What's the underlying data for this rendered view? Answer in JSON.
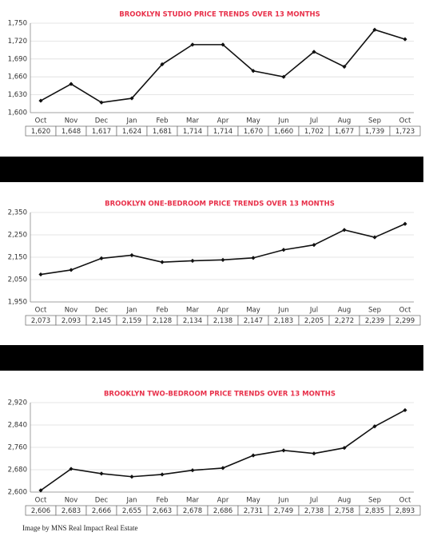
{
  "chart_data": [
    {
      "type": "line",
      "title": "BROOKLYN STUDIO PRICE TRENDS OVER 13 MONTHS",
      "categories": [
        "Oct",
        "Nov",
        "Dec",
        "Jan",
        "Feb",
        "Mar",
        "Apr",
        "May",
        "Jun",
        "Jul",
        "Aug",
        "Sep",
        "Oct"
      ],
      "values": [
        1620,
        1648,
        1617,
        1624,
        1681,
        1714,
        1714,
        1670,
        1660,
        1702,
        1677,
        1739,
        1723
      ],
      "value_labels": [
        "1,620",
        "1,648",
        "1,617",
        "1,624",
        "1,681",
        "1,714",
        "1,714",
        "1,670",
        "1,660",
        "1,702",
        "1,677",
        "1,739",
        "1,723"
      ],
      "color": "#111111",
      "ylim": [
        1600,
        1750
      ],
      "yticks": [
        {
          "value": 1600,
          "label": "1,600"
        },
        {
          "value": 1630,
          "label": "1,630"
        },
        {
          "value": 1660,
          "label": "1,660"
        },
        {
          "value": 1690,
          "label": "1,690"
        },
        {
          "value": 1720,
          "label": "1,720"
        },
        {
          "value": 1750,
          "label": "1,750"
        }
      ],
      "grid": true
    },
    {
      "type": "line",
      "title": "BROOKLYN ONE-BEDROOM PRICE TRENDS OVER 13 MONTHS",
      "categories": [
        "Oct",
        "Nov",
        "Dec",
        "Jan",
        "Feb",
        "Mar",
        "Apr",
        "May",
        "Jun",
        "Jul",
        "Aug",
        "Sep",
        "Oct"
      ],
      "values": [
        2073,
        2093,
        2145,
        2159,
        2128,
        2134,
        2138,
        2147,
        2183,
        2205,
        2272,
        2239,
        2299
      ],
      "value_labels": [
        "2,073",
        "2,093",
        "2,145",
        "2,159",
        "2,128",
        "2,134",
        "2,138",
        "2,147",
        "2,183",
        "2,205",
        "2,272",
        "2,239",
        "2,299"
      ],
      "color": "#111111",
      "ylim": [
        1950,
        2350
      ],
      "yticks": [
        {
          "value": 1950,
          "label": "1,950"
        },
        {
          "value": 2050,
          "label": "2,050"
        },
        {
          "value": 2150,
          "label": "2,150"
        },
        {
          "value": 2250,
          "label": "2,250"
        },
        {
          "value": 2350,
          "label": "2,350"
        }
      ],
      "grid": true
    },
    {
      "type": "line",
      "title": "BROOKLYN TWO-BEDROOM PRICE TRENDS OVER 13 MONTHS",
      "categories": [
        "Oct",
        "Nov",
        "Dec",
        "Jan",
        "Feb",
        "Mar",
        "Apr",
        "May",
        "Jun",
        "Jul",
        "Aug",
        "Sep",
        "Oct"
      ],
      "values": [
        2606,
        2683,
        2666,
        2655,
        2663,
        2678,
        2686,
        2731,
        2749,
        2738,
        2758,
        2835,
        2893
      ],
      "value_labels": [
        "2,606",
        "2,683",
        "2,666",
        "2,655",
        "2,663",
        "2,678",
        "2,686",
        "2,731",
        "2,749",
        "2,738",
        "2,758",
        "2,835",
        "2,893"
      ],
      "color": "#111111",
      "ylim": [
        2600,
        2920
      ],
      "yticks": [
        {
          "value": 2600,
          "label": "2,600"
        },
        {
          "value": 2680,
          "label": "2,680"
        },
        {
          "value": 2760,
          "label": "2,760"
        },
        {
          "value": 2840,
          "label": "2,840"
        },
        {
          "value": 2920,
          "label": "2,920"
        }
      ],
      "grid": true
    }
  ],
  "caption": "Image by MNS Real Impact Real Estate"
}
